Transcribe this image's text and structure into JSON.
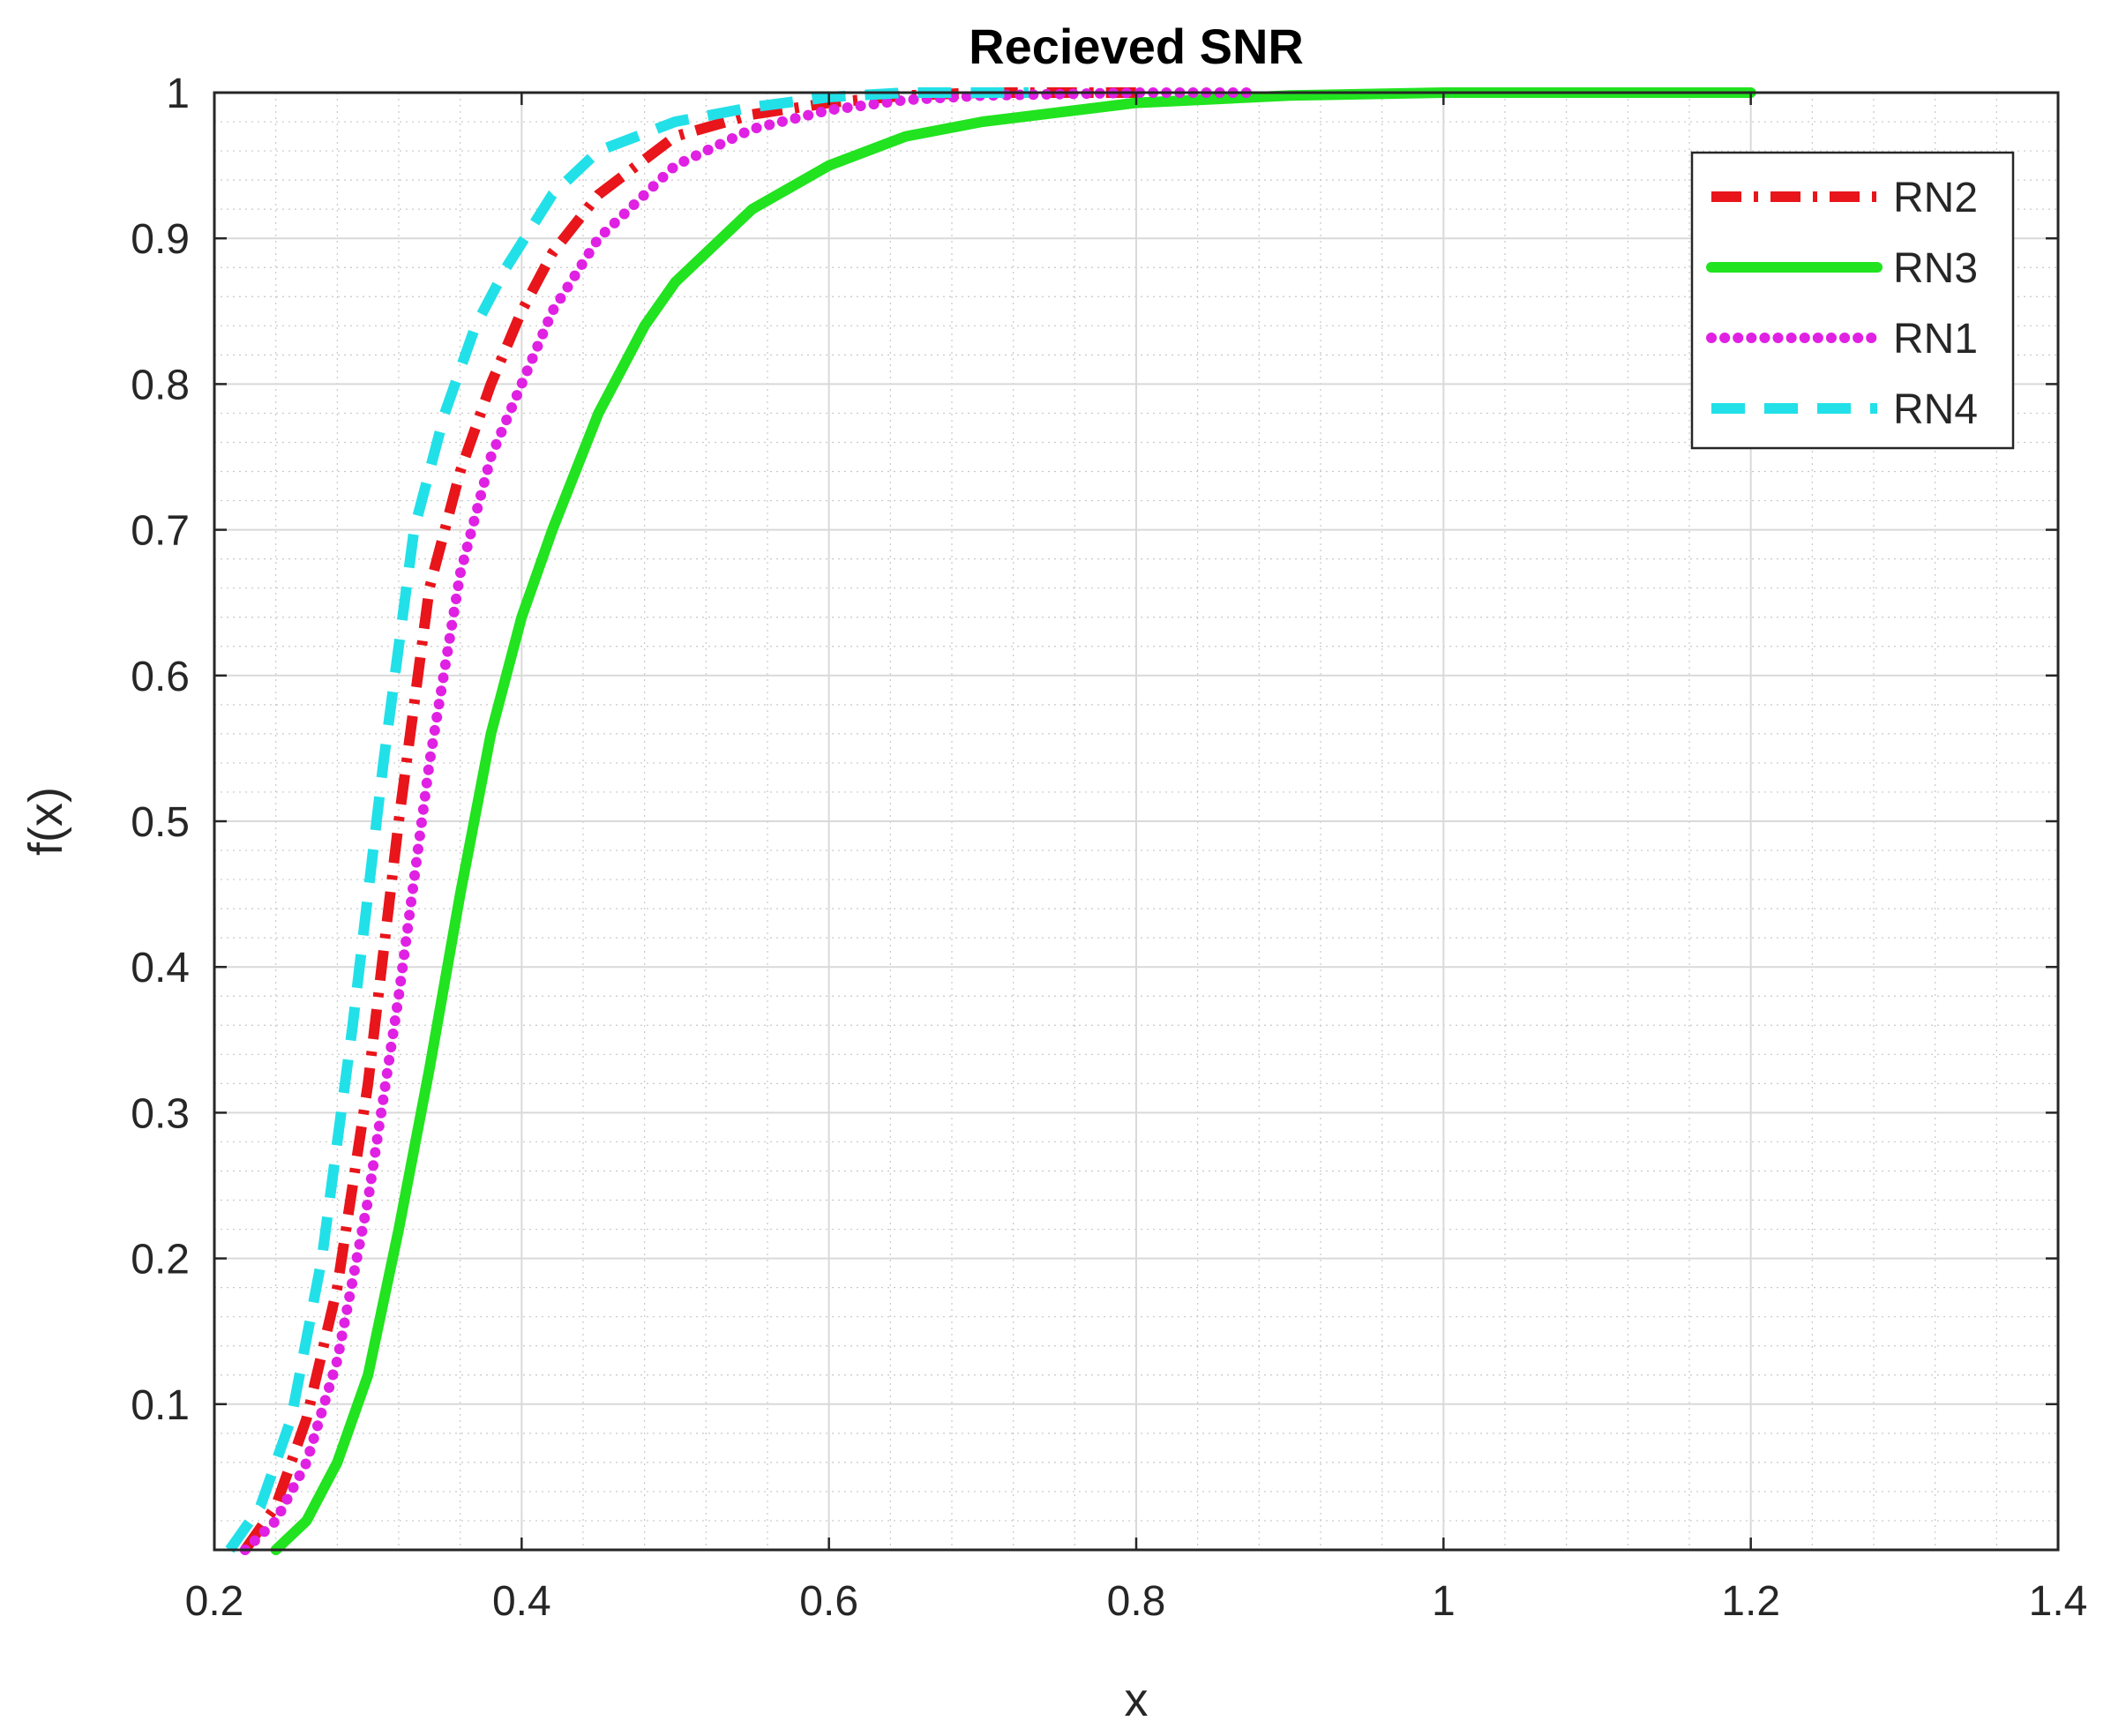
{
  "chart_data": {
    "type": "line",
    "title": "Recieved SNR",
    "xlabel": "x",
    "ylabel": "f(x)",
    "xlim": [
      0.2,
      1.4
    ],
    "ylim": [
      0,
      1
    ],
    "x_ticks": [
      0.2,
      0.4,
      0.6,
      0.8,
      1,
      1.2,
      1.4
    ],
    "x_tick_labels": [
      "0.2",
      "0.4",
      "0.6",
      "0.8",
      "1",
      "1.2",
      "1.4"
    ],
    "y_ticks": [
      0.1,
      0.2,
      0.3,
      0.4,
      0.5,
      0.6,
      0.7,
      0.8,
      0.9,
      1
    ],
    "y_tick_labels": [
      "0.1",
      "0.2",
      "0.3",
      "0.4",
      "0.5",
      "0.6",
      "0.7",
      "0.8",
      "0.9",
      "1"
    ],
    "grid": true,
    "minor_grid": true,
    "legend_position": "top-right",
    "series": [
      {
        "name": "RN2",
        "color": "#e8151b",
        "style": "dashdot",
        "points": [
          [
            0.22,
            0.0
          ],
          [
            0.24,
            0.03
          ],
          [
            0.26,
            0.09
          ],
          [
            0.28,
            0.18
          ],
          [
            0.3,
            0.32
          ],
          [
            0.32,
            0.5
          ],
          [
            0.34,
            0.66
          ],
          [
            0.36,
            0.74
          ],
          [
            0.38,
            0.8
          ],
          [
            0.4,
            0.85
          ],
          [
            0.42,
            0.89
          ],
          [
            0.45,
            0.93
          ],
          [
            0.5,
            0.97
          ],
          [
            0.55,
            0.985
          ],
          [
            0.6,
            0.993
          ],
          [
            0.65,
            0.998
          ],
          [
            0.7,
            1.0
          ],
          [
            0.8,
            1.0
          ]
        ]
      },
      {
        "name": "RN3",
        "color": "#21e31f",
        "style": "solid",
        "points": [
          [
            0.24,
            0.0
          ],
          [
            0.26,
            0.02
          ],
          [
            0.28,
            0.06
          ],
          [
            0.3,
            0.12
          ],
          [
            0.32,
            0.22
          ],
          [
            0.34,
            0.33
          ],
          [
            0.36,
            0.45
          ],
          [
            0.38,
            0.56
          ],
          [
            0.4,
            0.64
          ],
          [
            0.42,
            0.7
          ],
          [
            0.45,
            0.78
          ],
          [
            0.48,
            0.84
          ],
          [
            0.5,
            0.87
          ],
          [
            0.55,
            0.92
          ],
          [
            0.6,
            0.95
          ],
          [
            0.65,
            0.97
          ],
          [
            0.7,
            0.98
          ],
          [
            0.8,
            0.993
          ],
          [
            0.9,
            0.998
          ],
          [
            1.0,
            1.0
          ],
          [
            1.2,
            1.0
          ]
        ]
      },
      {
        "name": "RN1",
        "color": "#e020e3",
        "style": "dotted",
        "points": [
          [
            0.22,
            0.0
          ],
          [
            0.24,
            0.02
          ],
          [
            0.26,
            0.06
          ],
          [
            0.28,
            0.13
          ],
          [
            0.3,
            0.24
          ],
          [
            0.32,
            0.38
          ],
          [
            0.34,
            0.54
          ],
          [
            0.36,
            0.67
          ],
          [
            0.38,
            0.75
          ],
          [
            0.4,
            0.8
          ],
          [
            0.42,
            0.85
          ],
          [
            0.45,
            0.9
          ],
          [
            0.5,
            0.95
          ],
          [
            0.55,
            0.975
          ],
          [
            0.6,
            0.988
          ],
          [
            0.65,
            0.995
          ],
          [
            0.7,
            0.998
          ],
          [
            0.8,
            1.0
          ],
          [
            0.88,
            1.0
          ]
        ]
      },
      {
        "name": "RN4",
        "color": "#22e0e8",
        "style": "dashed",
        "points": [
          [
            0.21,
            0.0
          ],
          [
            0.23,
            0.03
          ],
          [
            0.25,
            0.09
          ],
          [
            0.27,
            0.2
          ],
          [
            0.29,
            0.36
          ],
          [
            0.31,
            0.54
          ],
          [
            0.33,
            0.7
          ],
          [
            0.35,
            0.78
          ],
          [
            0.37,
            0.84
          ],
          [
            0.39,
            0.88
          ],
          [
            0.42,
            0.93
          ],
          [
            0.45,
            0.96
          ],
          [
            0.5,
            0.98
          ],
          [
            0.55,
            0.99
          ],
          [
            0.6,
            0.997
          ],
          [
            0.65,
            1.0
          ],
          [
            0.73,
            1.0
          ]
        ]
      }
    ]
  }
}
